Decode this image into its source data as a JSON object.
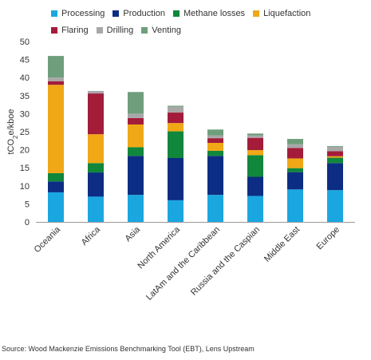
{
  "chart_data": {
    "type": "bar",
    "stacked": true,
    "categories": [
      "Oceania",
      "Africa",
      "Asia",
      "North America",
      "LatAm and the Caribbean",
      "Russia and the Caspian",
      "Middle East",
      "Europe"
    ],
    "series": [
      {
        "name": "Processing",
        "color": "#1aa7e0",
        "values": [
          8.2,
          7.0,
          7.5,
          6.0,
          7.5,
          7.2,
          9.0,
          8.8
        ]
      },
      {
        "name": "Production",
        "color": "#0c2d83",
        "values": [
          3.0,
          6.7,
          10.8,
          11.7,
          10.8,
          5.3,
          4.8,
          7.5
        ]
      },
      {
        "name": "Methane losses",
        "color": "#11873c",
        "values": [
          2.3,
          2.6,
          2.4,
          7.4,
          1.4,
          6.0,
          1.1,
          1.5
        ]
      },
      {
        "name": "Liquefaction",
        "color": "#f0a817",
        "values": [
          24.5,
          8.0,
          6.3,
          2.3,
          2.2,
          1.4,
          2.7,
          0.4
        ]
      },
      {
        "name": "Flaring",
        "color": "#a31c3a",
        "values": [
          1.0,
          11.3,
          1.8,
          2.9,
          1.3,
          3.4,
          2.9,
          1.4
        ]
      },
      {
        "name": "Drilling",
        "color": "#a8a8a8",
        "values": [
          1.0,
          0.7,
          1.2,
          1.6,
          0.8,
          0.7,
          1.0,
          1.2
        ]
      },
      {
        "name": "Venting",
        "color": "#6f9e7c",
        "values": [
          6.0,
          0.0,
          6.0,
          0.3,
          1.6,
          0.5,
          1.5,
          0.2
        ]
      }
    ],
    "ylabel": "tCO2e/kboe",
    "ylim": [
      0,
      50
    ],
    "yticks": [
      0,
      5,
      10,
      15,
      20,
      25,
      30,
      35,
      40,
      45,
      50
    ],
    "legend_position": "top",
    "grid": false
  },
  "source": "Source: Wood Mackenzie Emissions Benchmarking Tool (EBT), Lens Upstream"
}
